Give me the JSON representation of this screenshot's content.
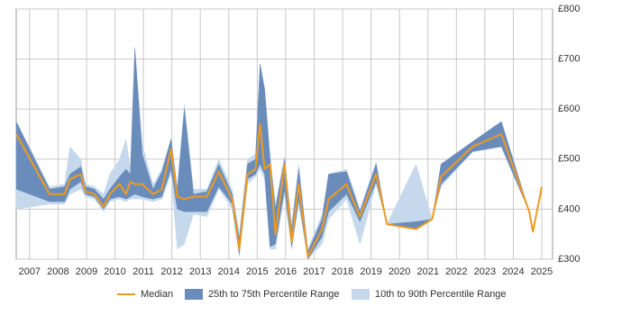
{
  "chart_data": {
    "type": "line",
    "x": [
      2006.53,
      2007.7,
      2008.23,
      2008.42,
      2008.8,
      2008.96,
      2009.28,
      2009.6,
      2009.82,
      2010.16,
      2010.39,
      2010.54,
      2010.7,
      2010.96,
      2011.34,
      2011.65,
      2011.97,
      2012.19,
      2012.44,
      2012.76,
      2013.23,
      2013.65,
      2014.12,
      2014.37,
      2014.66,
      2014.94,
      2015.1,
      2015.26,
      2015.45,
      2015.64,
      2015.96,
      2016.21,
      2016.46,
      2016.78,
      2017.28,
      2017.51,
      2018.14,
      2018.61,
      2019.18,
      2019.56,
      2020.58,
      2021.15,
      2021.46,
      2022.57,
      2023.58,
      2024.56,
      2024.69,
      2025.0
    ],
    "series": [
      {
        "name": "Median",
        "color": "#ee9a1f",
        "values": [
          550,
          430,
          430,
          460,
          470,
          435,
          430,
          405,
          430,
          450,
          430,
          455,
          450,
          450,
          430,
          440,
          520,
          425,
          420,
          425,
          425,
          475,
          420,
          320,
          470,
          480,
          570,
          480,
          490,
          350,
          490,
          335,
          450,
          305,
          360,
          420,
          450,
          385,
          470,
          370,
          360,
          380,
          465,
          525,
          550,
          395,
          355,
          445
        ]
      },
      {
        "name": "25th to 75th Percentile Range",
        "color": "#6a8cbb",
        "low": [
          440,
          415,
          415,
          440,
          455,
          430,
          425,
          400,
          420,
          425,
          420,
          425,
          430,
          425,
          420,
          425,
          480,
          400,
          395,
          395,
          395,
          445,
          410,
          310,
          460,
          470,
          490,
          470,
          325,
          330,
          440,
          325,
          420,
          300,
          345,
          395,
          430,
          375,
          455,
          370,
          360,
          380,
          450,
          515,
          525,
          395,
          null,
          null
        ],
        "high": [
          575,
          440,
          445,
          470,
          485,
          445,
          440,
          420,
          440,
          465,
          480,
          470,
          720,
          510,
          440,
          475,
          540,
          440,
          600,
          430,
          435,
          490,
          430,
          340,
          490,
          500,
          690,
          640,
          500,
          400,
          500,
          360,
          480,
          315,
          380,
          470,
          475,
          395,
          490,
          370,
          375,
          380,
          490,
          535,
          575,
          395,
          null,
          null
        ]
      },
      {
        "name": "10th to 90th Percentile Range",
        "color": "#c6d9ec",
        "low": [
          400,
          410,
          410,
          430,
          440,
          425,
          420,
          395,
          415,
          420,
          415,
          420,
          420,
          420,
          415,
          420,
          470,
          320,
          330,
          390,
          385,
          440,
          400,
          305,
          450,
          465,
          480,
          460,
          320,
          320,
          430,
          320,
          410,
          300,
          330,
          380,
          420,
          330,
          450,
          370,
          360,
          380,
          445,
          515,
          525,
          395,
          null,
          null
        ],
        "high": [
          575,
          445,
          450,
          525,
          500,
          450,
          445,
          430,
          470,
          500,
          540,
          480,
          725,
          530,
          450,
          480,
          540,
          440,
          610,
          440,
          440,
          500,
          440,
          350,
          500,
          510,
          690,
          640,
          510,
          410,
          505,
          370,
          490,
          320,
          390,
          470,
          480,
          400,
          495,
          370,
          490,
          380,
          490,
          535,
          575,
          395,
          null,
          null
        ]
      }
    ],
    "xlim": [
      2006.53,
      2025.38
    ],
    "xticks": [
      2007,
      2008,
      2009,
      2010,
      2011,
      2012,
      2013,
      2014,
      2015,
      2016,
      2017,
      2018,
      2019,
      2020,
      2021,
      2022,
      2023,
      2024,
      2025
    ],
    "ylim": [
      300,
      800
    ],
    "yticks": [
      {
        "value": 300,
        "label": "£300"
      },
      {
        "value": 400,
        "label": "£400"
      },
      {
        "value": 500,
        "label": "£500"
      },
      {
        "value": 600,
        "label": "£600"
      },
      {
        "value": 700,
        "label": "£700"
      },
      {
        "value": 800,
        "label": "£800"
      }
    ],
    "grid": true,
    "legend": "bottom"
  }
}
